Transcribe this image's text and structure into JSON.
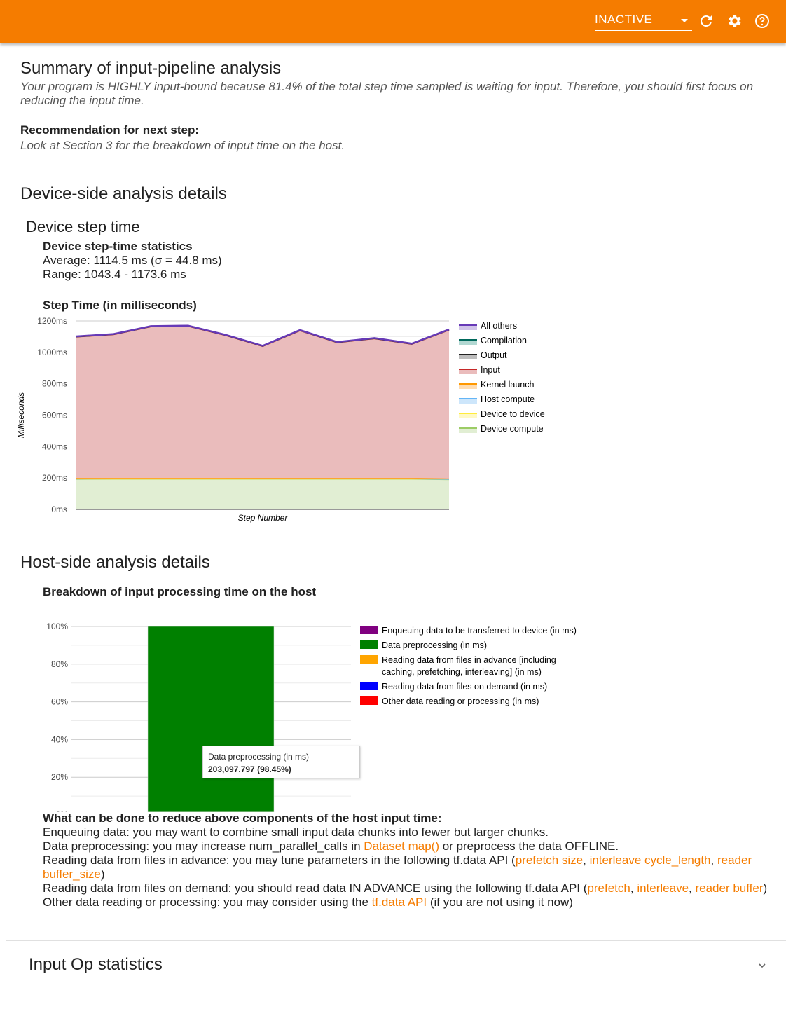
{
  "header": {
    "status_select": "INACTIVE",
    "icons": [
      "refresh-icon",
      "settings-icon",
      "help-icon"
    ],
    "accent": "#f57c00"
  },
  "summary": {
    "title": "Summary of input-pipeline analysis",
    "text": "Your program is HIGHLY input-bound because 81.4% of the total step time sampled is waiting for input. Therefore, you should first focus on reducing the input time.",
    "rec_label": "Recommendation for next step:",
    "rec_text": "Look at Section 3 for the breakdown of input time on the host."
  },
  "device": {
    "title": "Device-side analysis details",
    "subtitle": "Device step time",
    "stats_title": "Device step-time statistics",
    "average": "Average: 1114.5 ms (σ = 44.8 ms)",
    "range": "Range: 1043.4 - 1173.6 ms",
    "chart_title": "Step Time (in milliseconds)"
  },
  "host": {
    "title": "Host-side analysis details",
    "chart_title": "Breakdown of input processing time on the host",
    "tooltip": {
      "label": "Data preprocessing (in ms)",
      "value": "203,097.797 (98.45%)"
    },
    "advice_title": "What can be done to reduce above components of the host input time:",
    "advice": {
      "l1": "Enqueuing data: you may want to combine small input data chunks into fewer but larger chunks.",
      "l2a": "Data preprocessing: you may increase num_parallel_calls in ",
      "l2link": "Dataset map()",
      "l2b": " or preprocess the data OFFLINE.",
      "l3a": "Reading data from files in advance: you may tune parameters in the following tf.data API (",
      "l3l1": "prefetch size",
      "l3l2": "interleave cycle_length",
      "l3l3": "reader buffer_size",
      "l3b": ")",
      "l4a": "Reading data from files on demand: you should read data IN ADVANCE using the following tf.data API (",
      "l4l1": "prefetch",
      "l4l2": "interleave",
      "l4l3": "reader buffer",
      "l4b": ")",
      "l5a": "Other data reading or processing: you may consider using the ",
      "l5link": "tf.data API",
      "l5b": " (if you are not using it now)"
    }
  },
  "input_op": {
    "title": "Input Op statistics"
  },
  "chart_data": [
    {
      "type": "area",
      "stacked": true,
      "xlabel": "Step Number",
      "ylabel": "Milliseconds",
      "ylim": [
        0,
        1200
      ],
      "yticks": [
        "0ms",
        "200ms",
        "400ms",
        "600ms",
        "800ms",
        "1000ms",
        "1200ms"
      ],
      "grid": true,
      "legend": "right",
      "x": [
        1,
        2,
        3,
        4,
        5,
        6,
        7,
        8,
        9,
        10,
        11
      ],
      "series": [
        {
          "name": "Device compute",
          "color": "#9ccc65",
          "fill": "#e1eed3",
          "values": [
            192,
            193,
            193,
            193,
            193,
            193,
            193,
            193,
            193,
            193,
            190
          ]
        },
        {
          "name": "Device to device",
          "color": "#ffeb3b",
          "fill": "#fff9c4",
          "values": [
            1,
            1,
            1,
            1,
            1,
            1,
            1,
            1,
            1,
            1,
            1
          ]
        },
        {
          "name": "Host compute",
          "color": "#64b5f6",
          "fill": "#cde6fb",
          "values": [
            1,
            1,
            1,
            1,
            1,
            1,
            1,
            1,
            1,
            1,
            1
          ]
        },
        {
          "name": "Kernel launch",
          "color": "#ff9800",
          "fill": "#ffdcb0",
          "values": [
            6,
            6,
            6,
            6,
            6,
            5,
            5,
            5,
            5,
            5,
            5
          ]
        },
        {
          "name": "Input",
          "color": "#c62828",
          "fill": "#eabcbc",
          "values": [
            898,
            912,
            962,
            965,
            907,
            838,
            938,
            862,
            887,
            852,
            945
          ]
        },
        {
          "name": "Output",
          "color": "#212121",
          "fill": "#bdbdbd",
          "values": [
            1,
            1,
            1,
            1,
            1,
            1,
            1,
            1,
            1,
            1,
            1
          ]
        },
        {
          "name": "Compilation",
          "color": "#00695c",
          "fill": "#b2d8d2",
          "values": [
            1,
            1,
            1,
            1,
            1,
            1,
            1,
            1,
            1,
            1,
            1
          ]
        },
        {
          "name": "All others",
          "color": "#673ab7",
          "fill": "#d1c4e9",
          "values": [
            2,
            2,
            2,
            2,
            2,
            2,
            2,
            2,
            2,
            2,
            2
          ]
        }
      ]
    },
    {
      "type": "bar",
      "stacked": true,
      "percent": true,
      "ylim": [
        0,
        100
      ],
      "yticks": [
        "0%",
        "20%",
        "40%",
        "60%",
        "80%",
        "100%"
      ],
      "legend": "right",
      "series": [
        {
          "name": "Enqueuing data to be transferred to device (in ms)",
          "color": "#800080",
          "value": 0
        },
        {
          "name": "Data preprocessing (in ms)",
          "color": "#008000",
          "value": 98.45
        },
        {
          "name": "Reading data from files in advance [including caching, prefetching, interleaving] (in ms)",
          "color": "#ffa500",
          "value": 1.55
        },
        {
          "name": "Reading data from files on demand (in ms)",
          "color": "#0000ff",
          "value": 0
        },
        {
          "name": "Other data reading or processing (in ms)",
          "color": "#ff0000",
          "value": 0
        }
      ]
    }
  ]
}
